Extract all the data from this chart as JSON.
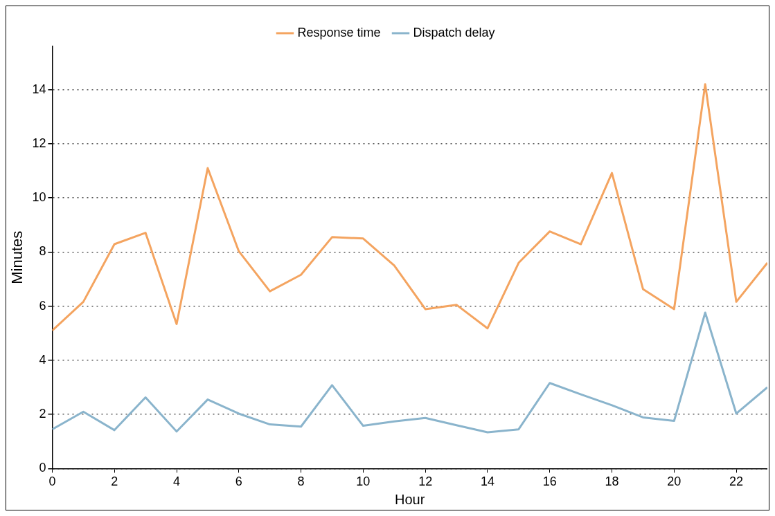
{
  "chart_data": {
    "type": "line",
    "xlabel": "Hour",
    "ylabel": "Minutes",
    "x": [
      0,
      1,
      2,
      3,
      4,
      5,
      6,
      7,
      8,
      9,
      10,
      11,
      12,
      13,
      14,
      15,
      16,
      17,
      18,
      19,
      20,
      21,
      22,
      23
    ],
    "series": [
      {
        "name": "Response time",
        "color": "#f4a460",
        "values": [
          5.1,
          6.16,
          8.29,
          8.71,
          5.34,
          11.1,
          8.03,
          6.55,
          7.16,
          8.55,
          8.5,
          7.5,
          5.89,
          6.05,
          5.18,
          7.6,
          8.76,
          8.29,
          10.92,
          6.63,
          5.89,
          14.2,
          6.16,
          7.6
        ]
      },
      {
        "name": "Dispatch delay",
        "color": "#8ab4cc",
        "values": [
          1.45,
          2.1,
          1.42,
          2.63,
          1.37,
          2.55,
          2.03,
          1.63,
          1.55,
          3.08,
          1.58,
          1.74,
          1.87,
          1.6,
          1.34,
          1.45,
          3.16,
          2.74,
          2.34,
          1.89,
          1.76,
          5.76,
          2.03,
          3.0
        ]
      }
    ],
    "xlim": [
      0,
      23
    ],
    "xticks": [
      0,
      2,
      4,
      6,
      8,
      10,
      12,
      14,
      16,
      18,
      20,
      22
    ],
    "ylim": [
      0,
      15.6
    ],
    "yticks": [
      0,
      2,
      4,
      6,
      8,
      10,
      12,
      14
    ],
    "grid": "y",
    "legend": "top",
    "marker": "none",
    "line_style": "solid"
  }
}
